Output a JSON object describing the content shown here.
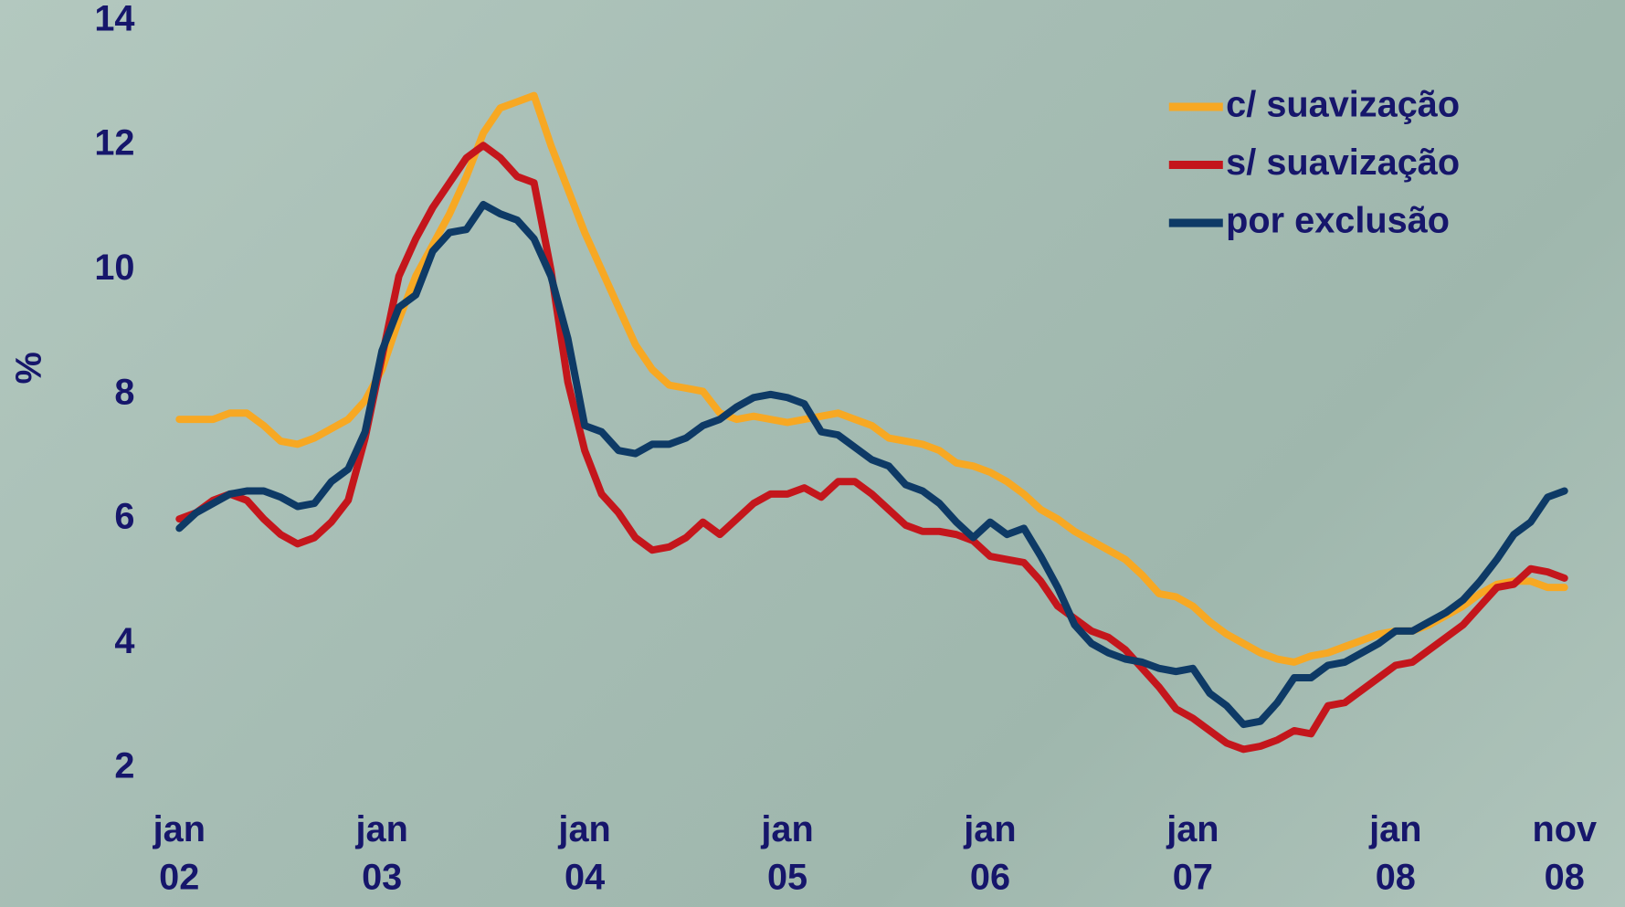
{
  "chart_data": {
    "type": "line",
    "y_label": "%",
    "categories": [
      "jan 02",
      null,
      null,
      null,
      null,
      null,
      null,
      null,
      null,
      null,
      null,
      null,
      "jan 03",
      null,
      null,
      null,
      null,
      null,
      null,
      null,
      null,
      null,
      null,
      null,
      "jan 04",
      null,
      null,
      null,
      null,
      null,
      null,
      null,
      null,
      null,
      null,
      null,
      "jan 05",
      null,
      null,
      null,
      null,
      null,
      null,
      null,
      null,
      null,
      null,
      null,
      "jan 06",
      null,
      null,
      null,
      null,
      null,
      null,
      null,
      null,
      null,
      null,
      null,
      "jan 07",
      null,
      null,
      null,
      null,
      null,
      null,
      null,
      null,
      null,
      null,
      null,
      "jan 08",
      null,
      null,
      null,
      null,
      null,
      null,
      null,
      null,
      null,
      "nov 08"
    ],
    "series": [
      {
        "name": "c/ suavização",
        "color": "#f7a823",
        "values": [
          7.6,
          7.6,
          7.6,
          7.7,
          7.7,
          7.5,
          7.25,
          7.2,
          7.3,
          7.45,
          7.6,
          7.9,
          8.4,
          9.2,
          9.9,
          10.4,
          10.9,
          11.5,
          12.2,
          12.6,
          12.7,
          12.8,
          12.0,
          11.3,
          10.6,
          10.0,
          9.4,
          8.8,
          8.4,
          8.15,
          8.1,
          8.05,
          7.7,
          7.6,
          7.65,
          7.6,
          7.55,
          7.6,
          7.65,
          7.7,
          7.6,
          7.5,
          7.3,
          7.25,
          7.2,
          7.1,
          6.9,
          6.85,
          6.75,
          6.6,
          6.4,
          6.15,
          6.0,
          5.8,
          5.65,
          5.5,
          5.35,
          5.1,
          4.8,
          4.75,
          4.6,
          4.35,
          4.15,
          4.0,
          3.85,
          3.75,
          3.7,
          3.8,
          3.85,
          3.95,
          4.05,
          4.15,
          4.2,
          4.2,
          4.3,
          4.45,
          4.6,
          4.8,
          4.95,
          5.0,
          5.0,
          4.9,
          4.9
        ]
      },
      {
        "name": "s/ suavização",
        "color": "#c4161c",
        "values": [
          6.0,
          6.1,
          6.3,
          6.4,
          6.3,
          6.0,
          5.75,
          5.6,
          5.7,
          5.95,
          6.3,
          7.3,
          8.6,
          9.9,
          10.5,
          11.0,
          11.4,
          11.8,
          12.0,
          11.8,
          11.5,
          11.4,
          10.0,
          8.2,
          7.1,
          6.4,
          6.1,
          5.7,
          5.5,
          5.55,
          5.7,
          5.95,
          5.75,
          6.0,
          6.25,
          6.4,
          6.4,
          6.5,
          6.35,
          6.6,
          6.6,
          6.4,
          6.15,
          5.9,
          5.8,
          5.8,
          5.75,
          5.65,
          5.4,
          5.35,
          5.3,
          5.0,
          4.6,
          4.4,
          4.2,
          4.1,
          3.9,
          3.6,
          3.3,
          2.95,
          2.8,
          2.6,
          2.4,
          2.3,
          2.35,
          2.45,
          2.6,
          2.55,
          3.0,
          3.05,
          3.25,
          3.45,
          3.65,
          3.7,
          3.9,
          4.1,
          4.3,
          4.6,
          4.9,
          4.95,
          5.2,
          5.15,
          5.05
        ]
      },
      {
        "name": "por exclusão",
        "color": "#0e3a66",
        "values": [
          5.85,
          6.1,
          6.25,
          6.4,
          6.45,
          6.45,
          6.35,
          6.2,
          6.25,
          6.6,
          6.8,
          7.4,
          8.7,
          9.4,
          9.6,
          10.3,
          10.6,
          10.65,
          11.05,
          10.9,
          10.8,
          10.5,
          9.9,
          8.9,
          7.5,
          7.4,
          7.1,
          7.05,
          7.2,
          7.2,
          7.3,
          7.5,
          7.6,
          7.8,
          7.95,
          8.0,
          7.95,
          7.85,
          7.4,
          7.35,
          7.15,
          6.95,
          6.85,
          6.55,
          6.45,
          6.25,
          5.95,
          5.7,
          5.95,
          5.75,
          5.85,
          5.4,
          4.9,
          4.3,
          4.0,
          3.85,
          3.75,
          3.7,
          3.6,
          3.55,
          3.6,
          3.2,
          3.0,
          2.7,
          2.75,
          3.05,
          3.45,
          3.45,
          3.65,
          3.7,
          3.85,
          4.0,
          4.2,
          4.2,
          4.35,
          4.5,
          4.7,
          5.0,
          5.35,
          5.75,
          5.95,
          6.35,
          6.45
        ]
      }
    ],
    "ylim": [
      2,
      14
    ],
    "yticks": [
      2,
      4,
      6,
      8,
      10,
      12,
      14
    ],
    "grid": false,
    "legend": "top-right"
  }
}
